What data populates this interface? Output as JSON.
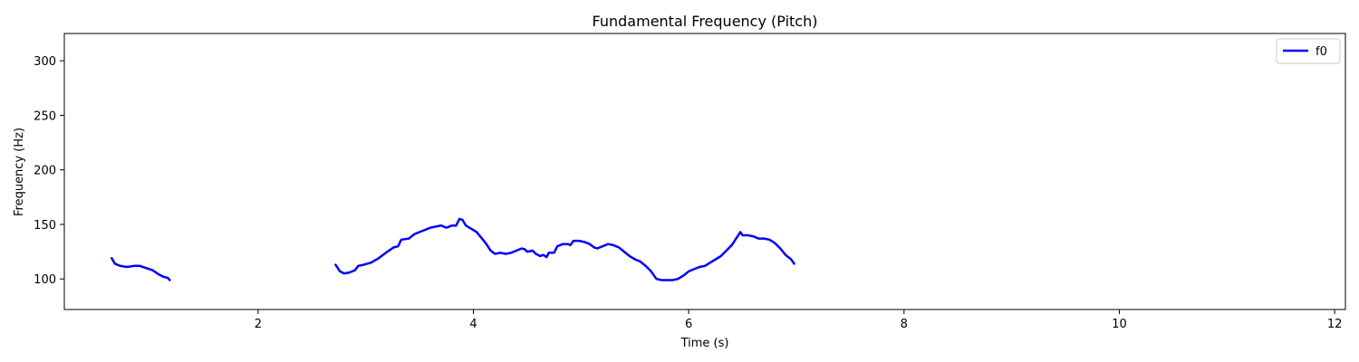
{
  "chart_data": {
    "type": "line",
    "title": "Fundamental Frequency (Pitch)",
    "xlabel": "Time (s)",
    "ylabel": "Frequency (Hz)",
    "xlim": [
      0.2,
      12.1
    ],
    "ylim": [
      72,
      325
    ],
    "xticks": [
      2,
      4,
      6,
      8,
      10,
      12
    ],
    "yticks": [
      100,
      150,
      200,
      250,
      300
    ],
    "grid": false,
    "legend_position": "top-right",
    "series": [
      {
        "name": "f0",
        "color": "#0000ff",
        "segments": [
          [
            [
              0.64,
              119
            ],
            [
              0.67,
              114
            ],
            [
              0.72,
              112
            ],
            [
              0.78,
              111
            ],
            [
              0.85,
              112
            ],
            [
              0.9,
              112
            ],
            [
              0.96,
              110
            ],
            [
              1.02,
              108
            ],
            [
              1.08,
              104
            ],
            [
              1.12,
              102
            ],
            [
              1.16,
              101
            ],
            [
              1.18,
              99
            ]
          ],
          [
            [
              2.72,
              113
            ],
            [
              2.76,
              107
            ],
            [
              2.8,
              105
            ],
            [
              2.85,
              106
            ],
            [
              2.9,
              108
            ],
            [
              2.93,
              112
            ],
            [
              2.98,
              113
            ],
            [
              3.05,
              115
            ],
            [
              3.12,
              119
            ],
            [
              3.2,
              125
            ],
            [
              3.26,
              129
            ],
            [
              3.3,
              130
            ],
            [
              3.33,
              136
            ],
            [
              3.4,
              137
            ],
            [
              3.45,
              141
            ],
            [
              3.5,
              143
            ],
            [
              3.55,
              145
            ],
            [
              3.6,
              147
            ],
            [
              3.65,
              148
            ],
            [
              3.7,
              149
            ],
            [
              3.75,
              147
            ],
            [
              3.8,
              149
            ],
            [
              3.84,
              149
            ],
            [
              3.87,
              155
            ],
            [
              3.9,
              154
            ],
            [
              3.93,
              149
            ],
            [
              3.98,
              146
            ],
            [
              4.03,
              143
            ],
            [
              4.08,
              137
            ],
            [
              4.12,
              132
            ],
            [
              4.16,
              126
            ],
            [
              4.2,
              123
            ],
            [
              4.25,
              124
            ],
            [
              4.3,
              123
            ],
            [
              4.35,
              124
            ],
            [
              4.4,
              126
            ],
            [
              4.45,
              128
            ],
            [
              4.48,
              127
            ],
            [
              4.5,
              125
            ],
            [
              4.55,
              126
            ],
            [
              4.58,
              123
            ],
            [
              4.62,
              121
            ],
            [
              4.65,
              122
            ],
            [
              4.68,
              120
            ],
            [
              4.7,
              124
            ],
            [
              4.75,
              124
            ],
            [
              4.78,
              130
            ],
            [
              4.83,
              132
            ],
            [
              4.88,
              132
            ],
            [
              4.9,
              131
            ],
            [
              4.93,
              135
            ],
            [
              4.98,
              135
            ],
            [
              5.03,
              134
            ],
            [
              5.08,
              132
            ],
            [
              5.12,
              129
            ],
            [
              5.15,
              128
            ],
            [
              5.2,
              130
            ],
            [
              5.25,
              132
            ],
            [
              5.3,
              131
            ],
            [
              5.35,
              129
            ],
            [
              5.4,
              125
            ],
            [
              5.45,
              121
            ],
            [
              5.5,
              118
            ],
            [
              5.55,
              116
            ],
            [
              5.6,
              112
            ],
            [
              5.65,
              107
            ],
            [
              5.7,
              100
            ],
            [
              5.75,
              99
            ],
            [
              5.8,
              99
            ],
            [
              5.85,
              99
            ],
            [
              5.9,
              100
            ],
            [
              5.95,
              103
            ],
            [
              6.0,
              107
            ],
            [
              6.05,
              109
            ],
            [
              6.1,
              111
            ],
            [
              6.15,
              112
            ],
            [
              6.2,
              115
            ],
            [
              6.25,
              118
            ],
            [
              6.3,
              121
            ],
            [
              6.35,
              126
            ],
            [
              6.4,
              131
            ],
            [
              6.44,
              137
            ],
            [
              6.48,
              143
            ],
            [
              6.5,
              140
            ],
            [
              6.55,
              140
            ],
            [
              6.6,
              139
            ],
            [
              6.65,
              137
            ],
            [
              6.7,
              137
            ],
            [
              6.75,
              136
            ],
            [
              6.8,
              133
            ],
            [
              6.85,
              128
            ],
            [
              6.9,
              122
            ],
            [
              6.95,
              118
            ],
            [
              6.98,
              114
            ]
          ]
        ]
      }
    ]
  }
}
